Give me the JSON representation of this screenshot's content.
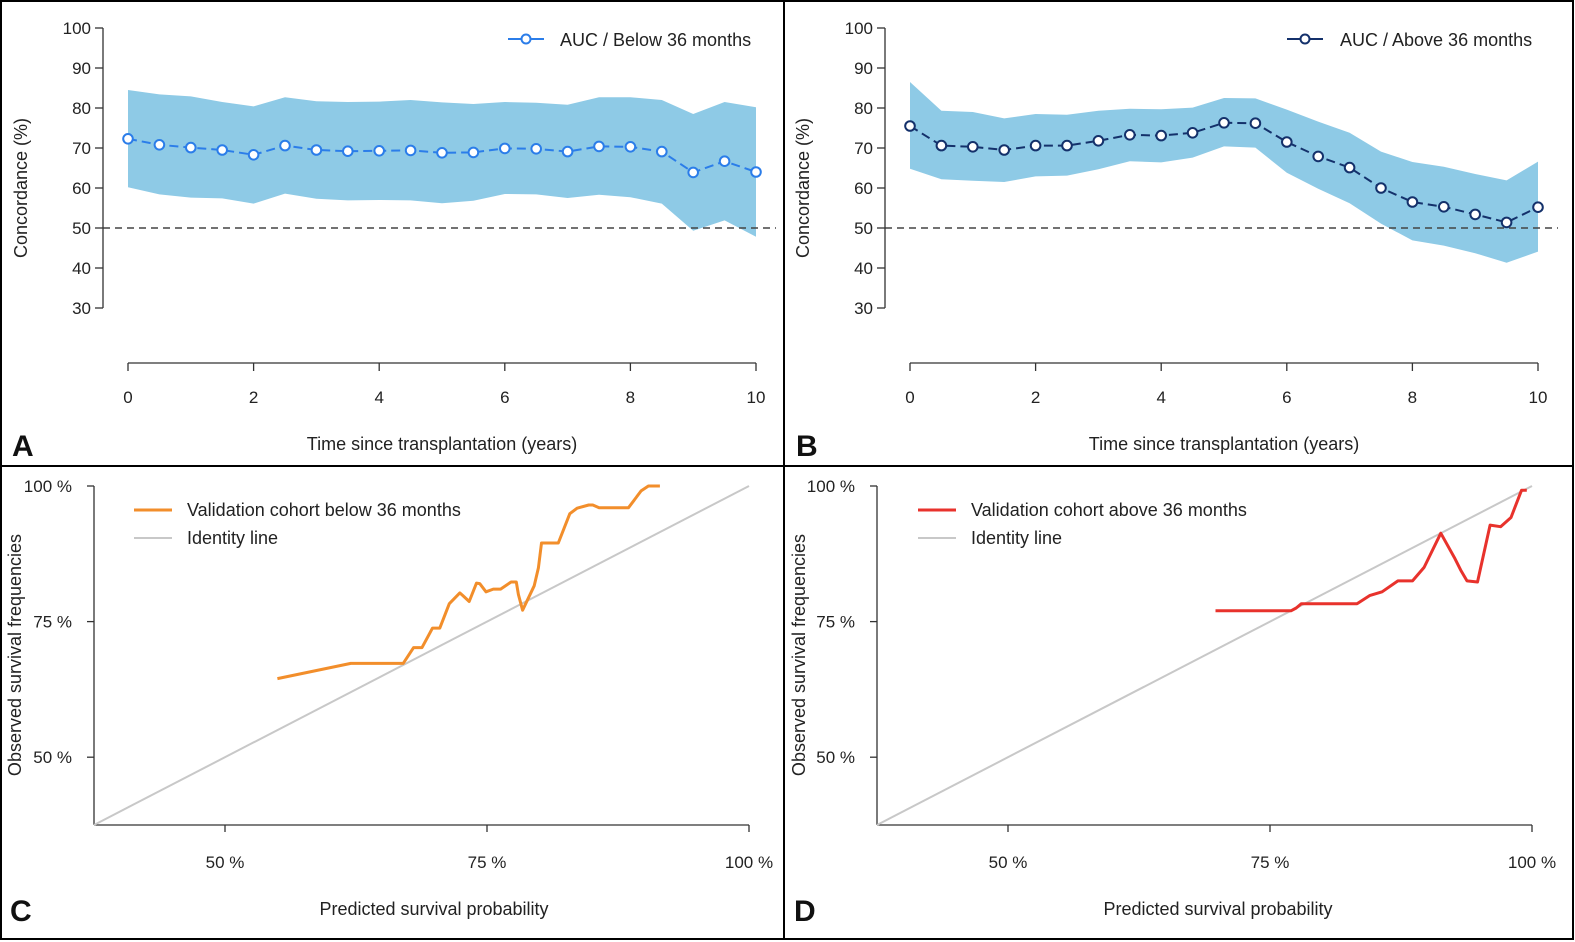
{
  "figure": {
    "panels": [
      {
        "letter": "A"
      },
      {
        "letter": "B"
      },
      {
        "letter": "C"
      },
      {
        "letter": "D"
      }
    ]
  },
  "chart_data": [
    {
      "panel": "A",
      "type": "line",
      "xlabel": "Time since transplantation (years)",
      "ylabel": "Concordance (%)",
      "xlim": [
        0,
        10
      ],
      "ylim": [
        30,
        100
      ],
      "xticks": [
        "0",
        "2",
        "4",
        "6",
        "8",
        "10"
      ],
      "yticks": [
        "30",
        "40",
        "50",
        "60",
        "70",
        "80",
        "90",
        "100"
      ],
      "legend": {
        "label": "AUC / Below 36 months",
        "position": "top-right"
      },
      "reference_line": {
        "y": 50,
        "style": "dashed"
      },
      "colors": {
        "line": "#2b7de9",
        "band": "#8ecae6"
      },
      "x": [
        0,
        0.5,
        1,
        1.5,
        2,
        2.5,
        3,
        3.5,
        4,
        4.5,
        5,
        5.5,
        6,
        6.5,
        7,
        7.5,
        8,
        8.5,
        9,
        9.5,
        10
      ],
      "series": [
        {
          "name": "AUC / Below 36 months",
          "values": [
            72.3,
            70.8,
            70.1,
            69.5,
            68.3,
            70.6,
            69.5,
            69.2,
            69.3,
            69.4,
            68.8,
            68.9,
            69.9,
            69.8,
            69.1,
            70.4,
            70.3,
            69.1,
            63.9,
            66.7,
            64.0
          ]
        }
      ],
      "band": {
        "upper": [
          84.5,
          83.4,
          82.9,
          81.5,
          80.4,
          82.7,
          81.7,
          81.5,
          81.6,
          82.0,
          81.4,
          81.0,
          81.5,
          81.3,
          80.8,
          82.7,
          82.7,
          82.0,
          78.5,
          81.5,
          80.2
        ],
        "lower": [
          60.2,
          58.4,
          57.6,
          57.4,
          56.1,
          58.6,
          57.3,
          56.9,
          57.0,
          56.9,
          56.2,
          56.8,
          58.5,
          58.4,
          57.5,
          58.3,
          57.7,
          56.1,
          49.3,
          51.9,
          47.8
        ]
      }
    },
    {
      "panel": "B",
      "type": "line",
      "xlabel": "Time since transplantation (years)",
      "ylabel": "Concordance (%)",
      "xlim": [
        0,
        10
      ],
      "ylim": [
        30,
        100
      ],
      "xticks": [
        "0",
        "2",
        "4",
        "6",
        "8",
        "10"
      ],
      "yticks": [
        "30",
        "40",
        "50",
        "60",
        "70",
        "80",
        "90",
        "100"
      ],
      "legend": {
        "label": "AUC / Above 36 months",
        "position": "top-right"
      },
      "reference_line": {
        "y": 50,
        "style": "dashed"
      },
      "colors": {
        "line": "#14316b",
        "band": "#8ecae6"
      },
      "x": [
        0,
        0.5,
        1,
        1.5,
        2,
        2.5,
        3,
        3.5,
        4,
        4.5,
        5,
        5.5,
        6,
        6.5,
        7,
        7.5,
        8,
        8.5,
        9,
        9.5,
        10
      ],
      "series": [
        {
          "name": "AUC / Above 36 months",
          "values": [
            75.5,
            70.6,
            70.3,
            69.5,
            70.6,
            70.6,
            71.8,
            73.3,
            73.1,
            73.8,
            76.3,
            76.2,
            71.5,
            67.9,
            65.1,
            60.0,
            56.5,
            55.3,
            53.4,
            51.4,
            55.2
          ]
        }
      ],
      "band": {
        "upper": [
          86.5,
          79.3,
          79.0,
          77.4,
          78.5,
          78.3,
          79.3,
          79.8,
          79.7,
          80.1,
          82.5,
          82.4,
          79.6,
          76.6,
          73.8,
          69.1,
          66.5,
          65.3,
          63.5,
          61.9,
          66.6
        ],
        "lower": [
          64.8,
          62.2,
          61.8,
          61.5,
          62.9,
          63.1,
          64.7,
          66.7,
          66.4,
          67.6,
          70.4,
          70.1,
          63.8,
          59.8,
          56.2,
          51.1,
          46.9,
          45.6,
          43.7,
          41.3,
          44.1
        ]
      }
    },
    {
      "panel": "C",
      "type": "line",
      "xlabel": "Predicted survival probability",
      "ylabel": "Observed survival frequencies",
      "xlim": [
        37.5,
        100
      ],
      "ylim": [
        37.5,
        100
      ],
      "xticks": [
        "50 %",
        "75 %",
        "100 %"
      ],
      "yticks": [
        "50 %",
        "75 %",
        "100 %"
      ],
      "legend": {
        "position": "top-left",
        "entries": [
          "Validation cohort below 36 months",
          "Identity line"
        ]
      },
      "colors": {
        "line": "#f28e2b",
        "identity": "#c8c8c8"
      },
      "series": [
        {
          "name": "Validation cohort below 36 months",
          "x": [
            55.0,
            62.0,
            67.0,
            68.0,
            68.8,
            69.8,
            70.5,
            71.4,
            72.4,
            72.7,
            73.3,
            74.0,
            74.3,
            74.9,
            75.6,
            76.3,
            77.3,
            77.8,
            78.0,
            78.4,
            79.5,
            79.9,
            80.2,
            81.8,
            82.9,
            83.6,
            84.7,
            85.1,
            85.7,
            87.0,
            88.0,
            88.5,
            89.7,
            90.4,
            91.0,
            91.5
          ],
          "y": [
            64.5,
            67.3,
            67.3,
            70.2,
            70.2,
            73.8,
            73.8,
            78.3,
            80.3,
            79.8,
            78.7,
            82.1,
            82.0,
            80.5,
            81.0,
            81.0,
            82.3,
            82.3,
            80.0,
            77.1,
            81.6,
            84.9,
            89.5,
            89.5,
            94.9,
            95.9,
            96.5,
            96.5,
            96.0,
            96.0,
            96.0,
            96.0,
            99.1,
            100.0,
            100.0,
            100.0
          ]
        }
      ],
      "identity_line": {
        "x": [
          37.5,
          100
        ],
        "y": [
          37.5,
          100
        ]
      }
    },
    {
      "panel": "D",
      "type": "line",
      "xlabel": "Predicted survival probability",
      "ylabel": "Observed survival frequencies",
      "xlim": [
        37.5,
        100
      ],
      "ylim": [
        37.5,
        100
      ],
      "xticks": [
        "50 %",
        "75 %",
        "100 %"
      ],
      "yticks": [
        "50 %",
        "75 %",
        "100 %"
      ],
      "legend": {
        "position": "top-left",
        "entries": [
          "Validation cohort above 36 months",
          "Identity line"
        ]
      },
      "colors": {
        "line": "#e8322c",
        "identity": "#c8c8c8"
      },
      "series": [
        {
          "name": "Validation cohort above 36 months",
          "x": [
            69.8,
            77.0,
            77.5,
            78.0,
            80.0,
            83.3,
            84.5,
            85.7,
            87.2,
            88.6,
            89.7,
            91.3,
            92.6,
            93.2,
            93.8,
            94.8,
            96.0,
            97.0,
            98.0,
            99.0,
            99.5
          ],
          "y": [
            77.0,
            77.0,
            77.5,
            78.3,
            78.3,
            78.3,
            79.8,
            80.5,
            82.5,
            82.5,
            85.0,
            91.3,
            86.8,
            84.5,
            82.5,
            82.3,
            92.8,
            92.5,
            94.2,
            99.2,
            99.2
          ]
        }
      ],
      "identity_line": {
        "x": [
          37.5,
          100
        ],
        "y": [
          37.5,
          100
        ]
      }
    }
  ]
}
